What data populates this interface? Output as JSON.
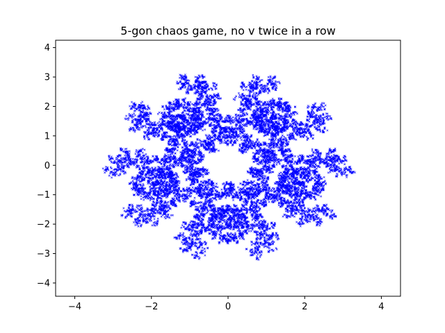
{
  "chart_data": {
    "type": "scatter",
    "title": "5-gon chaos game, no v twice in a row",
    "xlabel": "",
    "ylabel": "",
    "xlim": [
      -4.5,
      4.5
    ],
    "ylim": [
      -4.45,
      4.25
    ],
    "xticks": [
      -4,
      -2,
      0,
      2,
      4
    ],
    "yticks": [
      -4,
      -3,
      -2,
      -1,
      0,
      1,
      2,
      3,
      4
    ],
    "xtick_labels": [
      "−4",
      "−2",
      "0",
      "2",
      "4"
    ],
    "ytick_labels": [
      "−4",
      "−3",
      "−2",
      "−1",
      "0",
      "1",
      "2",
      "3",
      "4"
    ],
    "grid": false,
    "marker": "x",
    "series": [
      {
        "color": "#0000ff",
        "point_count": 12000,
        "pattern": "chaos-game",
        "vertices": [
          [
            0.0,
            4.0
          ],
          [
            3.8,
            1.24
          ],
          [
            2.35,
            -3.24
          ],
          [
            -2.35,
            -3.24
          ],
          [
            -3.8,
            1.24
          ]
        ],
        "jump_ratio": 0.5
      }
    ]
  }
}
